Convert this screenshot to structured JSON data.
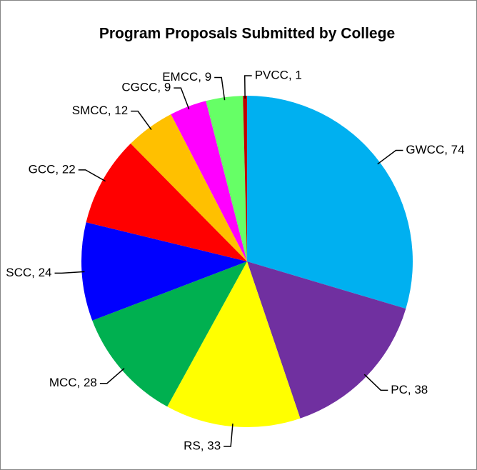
{
  "chart_data": {
    "type": "pie",
    "title": "Program Proposals Submitted by College",
    "values": [
      74,
      38,
      33,
      28,
      24,
      22,
      12,
      9,
      9,
      1
    ],
    "value_labels": [
      "GWCC, 74",
      "PC, 38",
      "RS, 33",
      "MCC, 28",
      "SCC, 24",
      "GCC, 22",
      "SMCC, 12",
      "CGCC, 9",
      "EMCC, 9",
      "PVCC, 1"
    ],
    "colors": [
      "#00b0f0",
      "#7030a0",
      "#ffff00",
      "#00b050",
      "#0000ff",
      "#ff0000",
      "#ffc000",
      "#ff00ff",
      "#66ff66",
      "#c00000"
    ]
  }
}
